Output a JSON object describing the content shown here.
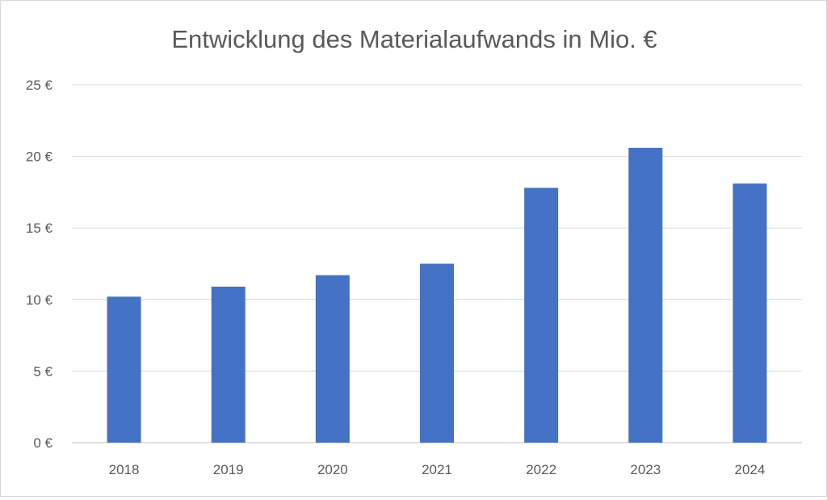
{
  "chart_data": {
    "type": "bar",
    "title": "Entwicklung des Materialaufwands in Mio. €",
    "xlabel": "",
    "ylabel": "",
    "categories": [
      "2018",
      "2019",
      "2020",
      "2021",
      "2022",
      "2023",
      "2024"
    ],
    "values": [
      10.2,
      10.9,
      11.7,
      12.5,
      17.8,
      20.6,
      18.1
    ],
    "ylim": [
      0,
      25
    ],
    "yticks": [
      0,
      5,
      10,
      15,
      20,
      25
    ],
    "ytick_labels": [
      "0 €",
      "5 €",
      "10 €",
      "15 €",
      "20 €",
      "25 €"
    ],
    "grid": true,
    "legend": "none",
    "bar_color": "#4472c4"
  }
}
